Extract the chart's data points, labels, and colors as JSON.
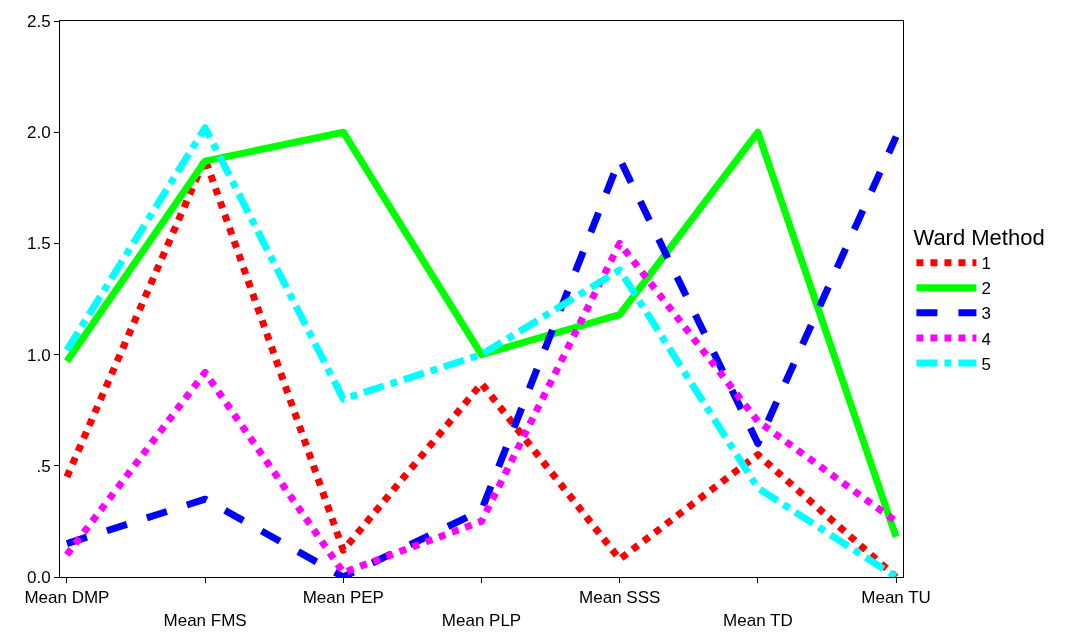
{
  "chart_data": {
    "type": "line",
    "legend_title": "Ward Method",
    "legend": "right",
    "marker": "none",
    "categories": [
      "Mean DMP",
      "Mean FMS",
      "Mean PEP",
      "Mean PLP",
      "Mean SSS",
      "Mean TD",
      "Mean TU"
    ],
    "ylim": [
      0,
      2.5
    ],
    "yticks": [
      {
        "value": 0,
        "label": "0.0"
      },
      {
        "value": 0.5,
        "label": ".5"
      },
      {
        "value": 1,
        "label": "1.0"
      },
      {
        "value": 1.5,
        "label": "1.5"
      },
      {
        "value": 2,
        "label": "2.0"
      },
      {
        "value": 2.5,
        "label": "2.5"
      }
    ],
    "series": [
      {
        "name": "1",
        "color": "#ff0000",
        "line_style": "dotted",
        "values": [
          0.45,
          1.88,
          0.12,
          0.87,
          0.08,
          0.55,
          0.0
        ]
      },
      {
        "name": "2",
        "color": "#00ff00",
        "line_style": "solid",
        "values": [
          0.97,
          1.87,
          2.0,
          1.0,
          1.18,
          2.0,
          0.18
        ]
      },
      {
        "name": "3",
        "color": "#0000ff",
        "line_style": "dashed",
        "values": [
          0.15,
          0.35,
          0.0,
          0.3,
          1.88,
          0.6,
          1.98
        ]
      },
      {
        "name": "4",
        "color": "#ff00ff",
        "line_style": "dotted",
        "values": [
          0.1,
          0.92,
          0.02,
          0.25,
          1.5,
          0.7,
          0.25
        ]
      },
      {
        "name": "5",
        "color": "#00ffff",
        "line_style": "dashdot",
        "values": [
          1.02,
          2.02,
          0.8,
          1.0,
          1.38,
          0.4,
          0.0
        ]
      }
    ]
  }
}
